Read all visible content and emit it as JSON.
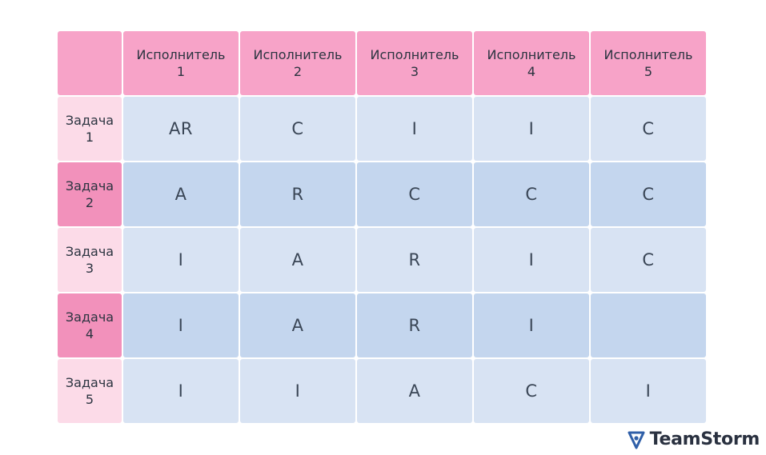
{
  "matrix": {
    "corner": "",
    "columns": [
      "Исполнитель\n1",
      "Исполнитель\n2",
      "Исполнитель\n3",
      "Исполнитель\n4",
      "Исполнитель\n5"
    ],
    "rows": [
      {
        "label": "Задача\n1",
        "values": [
          "AR",
          "C",
          "I",
          "I",
          "C"
        ]
      },
      {
        "label": "Задача\n2",
        "values": [
          "A",
          "R",
          "C",
          "C",
          "C"
        ]
      },
      {
        "label": "Задача\n3",
        "values": [
          "I",
          "A",
          "R",
          "I",
          "C"
        ]
      },
      {
        "label": "Задача\n4",
        "values": [
          "I",
          "A",
          "R",
          "I",
          ""
        ]
      },
      {
        "label": "Задача\n5",
        "values": [
          "I",
          "I",
          "A",
          "C",
          "I"
        ]
      }
    ]
  },
  "colors": {
    "header_pink": "#f7a3c8",
    "row_pink_light": "#fcdbe8",
    "row_pink_dark": "#f291bb",
    "cell_blue_light": "#d8e3f3",
    "cell_blue_dark": "#c4d6ee",
    "brand_icon": "#2f5fa8"
  },
  "brand": {
    "name": "TeamStorm",
    "icon": "teamstorm-logo-icon"
  }
}
